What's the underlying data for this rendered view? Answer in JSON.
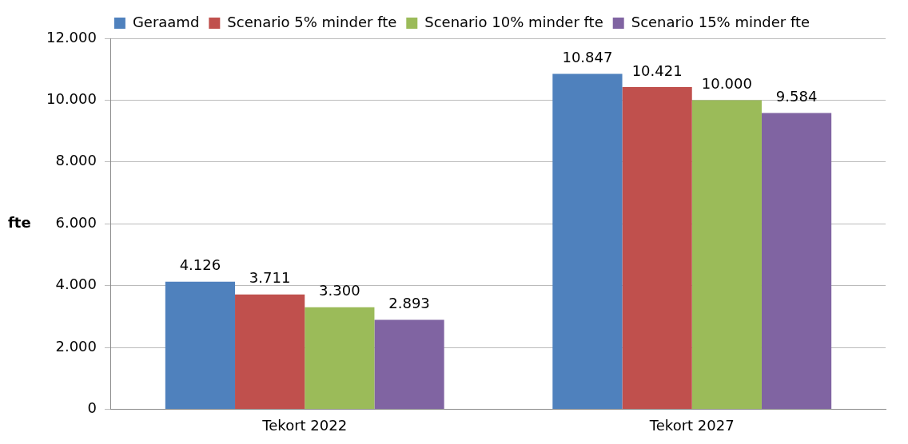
{
  "chart_data": {
    "type": "bar",
    "ylabel": "fte",
    "categories": [
      "Tekort 2022",
      "Tekort 2027"
    ],
    "series": [
      {
        "name": "Geraamd",
        "color": "#4f81bd",
        "values": [
          4126,
          10847
        ],
        "value_labels": [
          "4.126",
          "10.847"
        ]
      },
      {
        "name": "Scenario 5% minder fte",
        "color": "#c0504d",
        "values": [
          3711,
          10421
        ],
        "value_labels": [
          "3.711",
          "10.421"
        ]
      },
      {
        "name": "Scenario 10% minder fte",
        "color": "#9bbb59",
        "values": [
          3300,
          10000
        ],
        "value_labels": [
          "3.300",
          "10.000"
        ]
      },
      {
        "name": "Scenario 15% minder fte",
        "color": "#8064a2",
        "values": [
          2893,
          9584
        ],
        "value_labels": [
          "2.893",
          "9.584"
        ]
      }
    ],
    "ylim": [
      0,
      12000
    ],
    "yticks": [
      {
        "value": 0,
        "label": "0"
      },
      {
        "value": 2000,
        "label": "2.000"
      },
      {
        "value": 4000,
        "label": "4.000"
      },
      {
        "value": 6000,
        "label": "6.000"
      },
      {
        "value": 8000,
        "label": "8.000"
      },
      {
        "value": 10000,
        "label": "10.000"
      },
      {
        "value": 12000,
        "label": "12.000"
      }
    ],
    "grid": "y",
    "legend": "top"
  }
}
